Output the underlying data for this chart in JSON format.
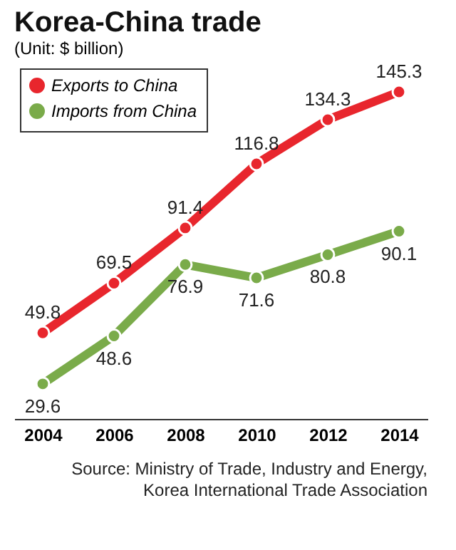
{
  "chart_data": {
    "type": "line",
    "title": "Korea-China trade",
    "subtitle": "(Unit: $ billion)",
    "categories": [
      "2004",
      "2006",
      "2008",
      "2010",
      "2012",
      "2014"
    ],
    "series": [
      {
        "name": "Exports to China",
        "color": "#e8262d",
        "values": [
          49.8,
          69.5,
          91.4,
          116.8,
          134.3,
          145.3
        ]
      },
      {
        "name": "Imports from China",
        "color": "#7aab4a",
        "values": [
          29.6,
          48.6,
          76.9,
          71.6,
          80.8,
          90.1
        ]
      }
    ],
    "data_labels": true,
    "marker": "circle",
    "line_style": "solid",
    "grid": false,
    "legend": "top left",
    "tick_labels": "x",
    "annotations": [
      "Source: Ministry of Trade, Industry and Energy, Korea International Trade Association"
    ]
  }
}
